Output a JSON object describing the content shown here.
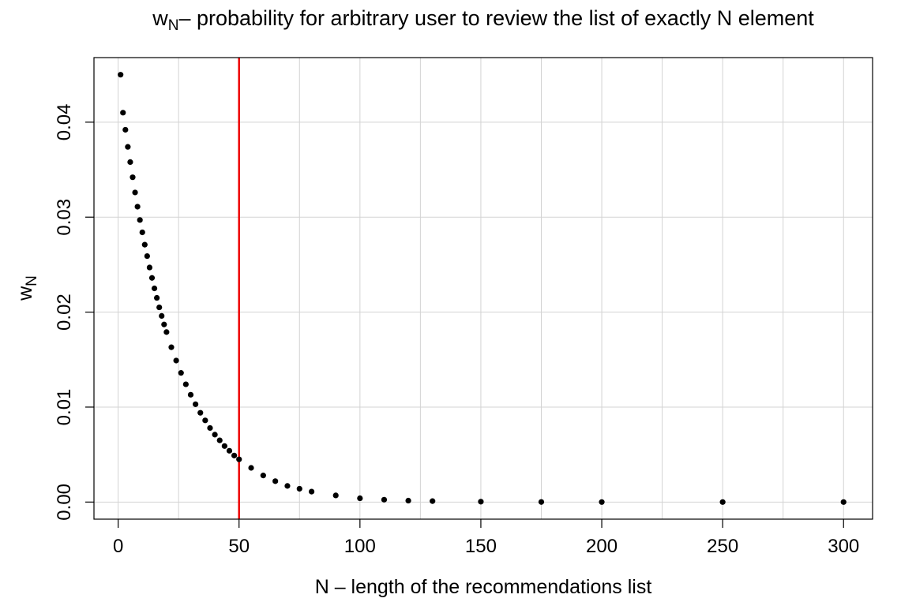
{
  "chart_data": {
    "type": "scatter",
    "title": {
      "symbol": "w",
      "subscript": "N",
      "text": "– probability for arbitrary user to review the list of exactly N element"
    },
    "xlabel": "N – length of the recommendations list",
    "ylabel": {
      "symbol": "w",
      "subscript": "N"
    },
    "xlim": [
      -10,
      312
    ],
    "ylim": [
      -0.0018,
      0.0468
    ],
    "x_ticks": [
      0,
      50,
      100,
      150,
      200,
      250,
      300
    ],
    "x_tick_labels": [
      "0",
      "50",
      "100",
      "150",
      "200",
      "250",
      "300"
    ],
    "y_ticks": [
      0,
      0.01,
      0.02,
      0.03,
      0.04
    ],
    "y_tick_labels": [
      "0.00",
      "0.01",
      "0.02",
      "0.03",
      "0.04"
    ],
    "x_grid": [
      0,
      25,
      50,
      75,
      100,
      125,
      150,
      175,
      200,
      225,
      250,
      275,
      300
    ],
    "y_grid": [
      0,
      0.01,
      0.02,
      0.03,
      0.04
    ],
    "grid": true,
    "series": [
      {
        "x": [
          1,
          2,
          3,
          4,
          5,
          6,
          7,
          8,
          9,
          10,
          11,
          12,
          13,
          14,
          15,
          16,
          17,
          18,
          19,
          20,
          22,
          24,
          26,
          28,
          30,
          32,
          34,
          36,
          38,
          40,
          42,
          44,
          46,
          48,
          50,
          55,
          60,
          65,
          70,
          75,
          80,
          90,
          100,
          110,
          120,
          130,
          150,
          175,
          200,
          250,
          300
        ],
        "y": [
          0.045,
          0.041,
          0.0392,
          0.0374,
          0.0358,
          0.0342,
          0.0326,
          0.0311,
          0.0297,
          0.0284,
          0.0271,
          0.0259,
          0.0247,
          0.0236,
          0.0225,
          0.0215,
          0.0205,
          0.0196,
          0.0187,
          0.0179,
          0.0163,
          0.0149,
          0.0136,
          0.0124,
          0.0113,
          0.0103,
          0.0094,
          0.0086,
          0.0078,
          0.0071,
          0.0065,
          0.0059,
          0.0054,
          0.0049,
          0.0045,
          0.0036,
          0.0028,
          0.0022,
          0.0017,
          0.0014,
          0.0011,
          0.0007,
          0.0004,
          0.00025,
          0.00015,
          0.0001,
          4e-05,
          1e-05,
          3e-06,
          3e-07,
          0.0
        ],
        "color": "#000000"
      }
    ],
    "vline": {
      "x": 50,
      "color": "#ee0000"
    }
  }
}
